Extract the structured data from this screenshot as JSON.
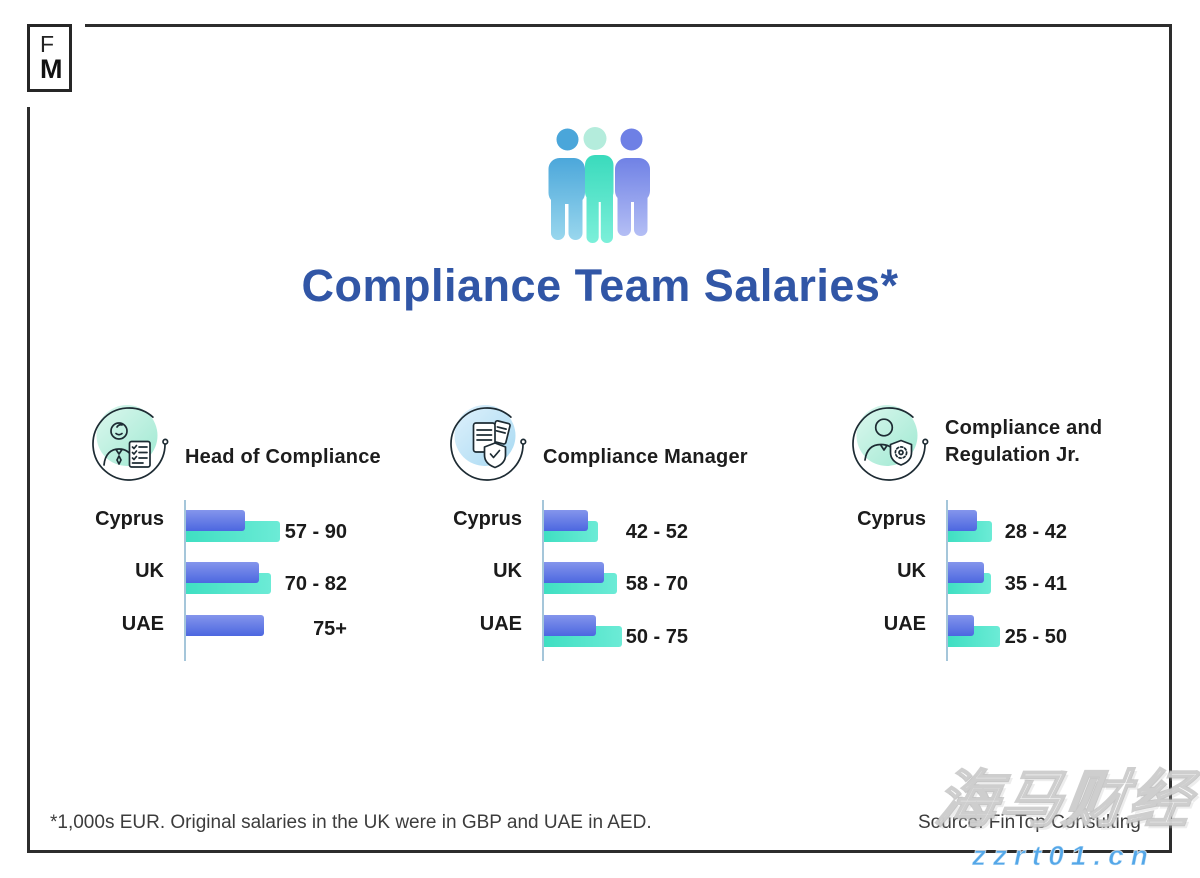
{
  "logo": {
    "f_label": "F",
    "m_label": "M"
  },
  "title": "Compliance Team Salaries*",
  "footnote": "*1,000s EUR. Original salaries in the UK were in GBP and UAE in AED.",
  "source": "Source: FinTop Consulting",
  "watermark": {
    "cn_text": "海马财经",
    "site_text": "zzrt01.cn"
  },
  "colors": {
    "title_blue": "#3156a6",
    "bar_blue_top": "#8495ec",
    "bar_blue_bottom": "#4c67e0",
    "bar_teal_left": "#3fdfc2",
    "bar_teal_right": "#6cebd6",
    "axis_line": "#a5c6da",
    "frame_dark": "#2d2d2d",
    "watermark_blue": "#54a7e8",
    "icon_circle_mint": "#aeeeda",
    "icon_circle_blue": "#aedcf4",
    "person_blue": "#4aa6da",
    "person_teal": "#39dabc",
    "person_purple": "#6e80e5"
  },
  "sections": [
    {
      "title": "Head of Compliance",
      "icon": "person-checklist-icon"
    },
    {
      "title": "Compliance Manager",
      "icon": "documents-shield-icon"
    },
    {
      "title": "Compliance and Regulation Jr.",
      "icon": "person-shield-gear-icon"
    }
  ],
  "chart_data": [
    {
      "type": "bar",
      "title": "Head of Compliance",
      "orientation": "horizontal",
      "unit": "1,000s EUR",
      "categories": [
        "Cyprus",
        "UK",
        "UAE"
      ],
      "series": [
        {
          "name": "range_low",
          "color_key": "blue",
          "values": [
            57,
            70,
            75
          ]
        },
        {
          "name": "range_high",
          "color_key": "teal",
          "values": [
            90,
            82,
            null
          ]
        }
      ],
      "value_labels": [
        "57 - 90",
        "70 - 82",
        "75+"
      ],
      "legend": "none",
      "grid": "off"
    },
    {
      "type": "bar",
      "title": "Compliance Manager",
      "orientation": "horizontal",
      "unit": "1,000s EUR",
      "categories": [
        "Cyprus",
        "UK",
        "UAE"
      ],
      "series": [
        {
          "name": "range_low",
          "color_key": "blue",
          "values": [
            42,
            58,
            50
          ]
        },
        {
          "name": "range_high",
          "color_key": "teal",
          "values": [
            52,
            70,
            75
          ]
        }
      ],
      "value_labels": [
        "42 - 52",
        "58 - 70",
        "50 - 75"
      ],
      "legend": "none",
      "grid": "off"
    },
    {
      "type": "bar",
      "title": "Compliance and Regulation Jr.",
      "orientation": "horizontal",
      "unit": "1,000s EUR",
      "categories": [
        "Cyprus",
        "UK",
        "UAE"
      ],
      "series": [
        {
          "name": "range_low",
          "color_key": "blue",
          "values": [
            28,
            35,
            25
          ]
        },
        {
          "name": "range_high",
          "color_key": "teal",
          "values": [
            42,
            41,
            50
          ]
        }
      ],
      "value_labels": [
        "28 - 42",
        "35 - 41",
        "25 - 50"
      ],
      "legend": "none",
      "grid": "off"
    }
  ]
}
